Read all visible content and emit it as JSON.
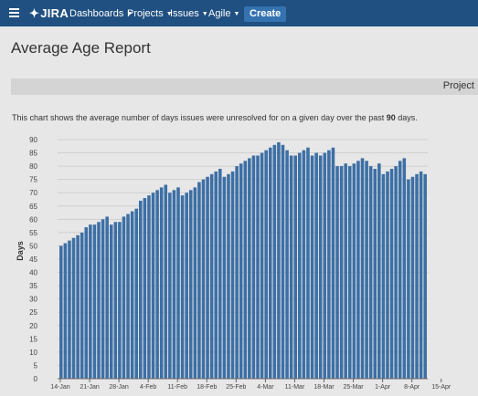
{
  "topbar": {
    "brand": "JIRA",
    "brand_mark": "✦",
    "menu_icon": "hamburger-menu-icon",
    "nav": [
      {
        "label": "Dashboards"
      },
      {
        "label": "Projects"
      },
      {
        "label": "Issues"
      },
      {
        "label": "Agile"
      }
    ],
    "create_label": "Create",
    "colors": {
      "bar": "#205081",
      "create": "#3572b0"
    }
  },
  "page": {
    "title": "Average Age Report",
    "project_label": "Project",
    "description_before": "This chart shows the average number of days issues were unresolved for on a given day over the past ",
    "description_days": "90",
    "description_after": " days."
  },
  "chart_data": {
    "type": "bar",
    "ylabel": "Days",
    "xlabel": "",
    "ylim": [
      0,
      90
    ],
    "yticks": [
      0,
      5,
      10,
      15,
      20,
      25,
      30,
      35,
      40,
      45,
      50,
      55,
      60,
      65,
      70,
      75,
      80,
      85,
      90
    ],
    "x_tick_labels": [
      "14-Jan",
      "21-Jan",
      "28-Jan",
      "4-Feb",
      "11-Feb",
      "18-Feb",
      "25-Feb",
      "4-Mar",
      "11-Mar",
      "18-Mar",
      "25-Mar",
      "1-Apr",
      "8-Apr",
      "15-Apr"
    ],
    "bar_color": "#3d6fa5",
    "grid": true,
    "start_date": "2014-01-14",
    "values": [
      50,
      51,
      52,
      53,
      54,
      55,
      57,
      58,
      58,
      59,
      60,
      61,
      58,
      59,
      59,
      61,
      62,
      63,
      64,
      67,
      68,
      69,
      70,
      71,
      72,
      73,
      70,
      71,
      72,
      69,
      70,
      71,
      72,
      74,
      75,
      76,
      77,
      78,
      79,
      76,
      77,
      78,
      80,
      81,
      82,
      83,
      84,
      84,
      85,
      86,
      87,
      88,
      89,
      88,
      86,
      84,
      84,
      85,
      86,
      87,
      84,
      85,
      84,
      85,
      86,
      87,
      80,
      80,
      81,
      80,
      81,
      82,
      83,
      82,
      80,
      79,
      81,
      77,
      78,
      79,
      80,
      82,
      83,
      75,
      76,
      77,
      78,
      77
    ]
  }
}
